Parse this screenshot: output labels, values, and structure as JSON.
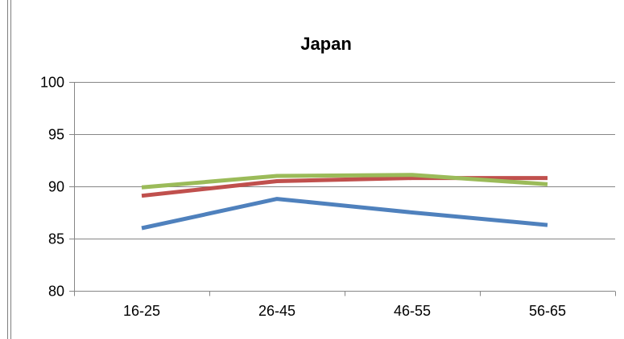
{
  "chart_data": {
    "type": "line",
    "title": "Japan",
    "xlabel": "",
    "ylabel": "",
    "categories": [
      "16-25",
      "26-45",
      "46-55",
      "56-65"
    ],
    "ylim": [
      80,
      100
    ],
    "yticks": [
      80,
      85,
      90,
      95,
      100
    ],
    "grid": "horizontal",
    "legend": "none",
    "series": [
      {
        "color": "#4f81bd",
        "values": [
          86.0,
          88.8,
          87.5,
          86.3
        ]
      },
      {
        "color": "#c0504d",
        "values": [
          89.1,
          90.5,
          90.8,
          90.8
        ]
      },
      {
        "color": "#9bbb59",
        "values": [
          89.9,
          91.0,
          91.1,
          90.2
        ]
      }
    ]
  }
}
